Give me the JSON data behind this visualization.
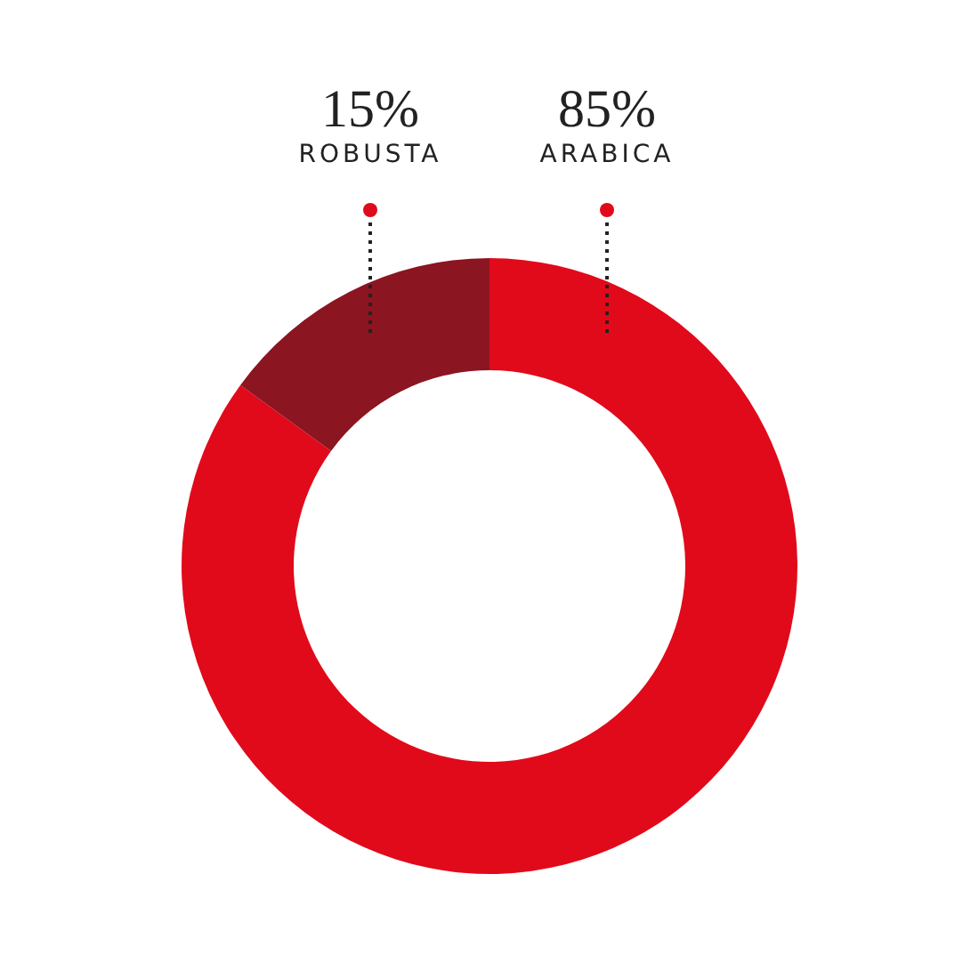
{
  "chart_data": {
    "type": "donut",
    "categories": [
      "ARABICA",
      "ROBUSTA"
    ],
    "values": [
      85,
      15
    ],
    "colors": [
      "#e10a1a",
      "#8b1520"
    ],
    "value_labels": [
      "85%",
      "15%"
    ],
    "legend": false
  }
}
